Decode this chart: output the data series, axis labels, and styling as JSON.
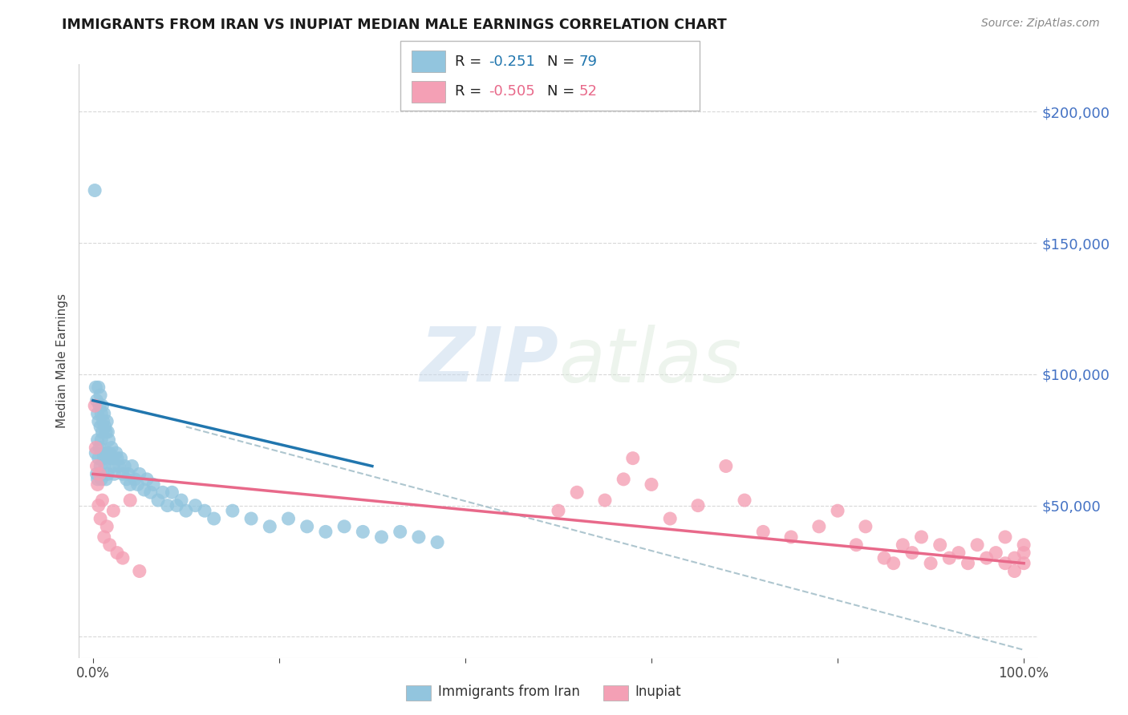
{
  "title": "IMMIGRANTS FROM IRAN VS INUPIAT MEDIAN MALE EARNINGS CORRELATION CHART",
  "source": "Source: ZipAtlas.com",
  "ylabel": "Median Male Earnings",
  "ylim": [
    -8000,
    218000
  ],
  "xlim": [
    -0.015,
    1.015
  ],
  "color_blue": "#92c5de",
  "color_pink": "#f4a0b5",
  "color_blue_line": "#2176ae",
  "color_pink_line": "#e8698a",
  "color_dashed": "#aec6cf",
  "background_color": "#ffffff",
  "grid_color": "#d8d8d8",
  "blue_x": [
    0.002,
    0.003,
    0.003,
    0.004,
    0.004,
    0.005,
    0.005,
    0.005,
    0.006,
    0.006,
    0.006,
    0.007,
    0.007,
    0.008,
    0.008,
    0.008,
    0.009,
    0.009,
    0.009,
    0.01,
    0.01,
    0.011,
    0.011,
    0.012,
    0.012,
    0.013,
    0.013,
    0.014,
    0.014,
    0.015,
    0.015,
    0.016,
    0.016,
    0.017,
    0.018,
    0.019,
    0.02,
    0.021,
    0.022,
    0.023,
    0.025,
    0.026,
    0.028,
    0.03,
    0.032,
    0.034,
    0.036,
    0.038,
    0.04,
    0.042,
    0.045,
    0.048,
    0.05,
    0.055,
    0.058,
    0.062,
    0.065,
    0.07,
    0.075,
    0.08,
    0.085,
    0.09,
    0.095,
    0.1,
    0.11,
    0.12,
    0.13,
    0.15,
    0.17,
    0.19,
    0.21,
    0.23,
    0.25,
    0.27,
    0.29,
    0.31,
    0.33,
    0.35,
    0.37
  ],
  "blue_y": [
    170000,
    95000,
    70000,
    90000,
    62000,
    85000,
    75000,
    60000,
    95000,
    82000,
    68000,
    88000,
    72000,
    92000,
    80000,
    65000,
    85000,
    75000,
    60000,
    88000,
    78000,
    82000,
    70000,
    85000,
    68000,
    80000,
    65000,
    78000,
    60000,
    82000,
    70000,
    78000,
    62000,
    75000,
    70000,
    68000,
    72000,
    68000,
    65000,
    62000,
    70000,
    68000,
    65000,
    68000,
    62000,
    65000,
    60000,
    62000,
    58000,
    65000,
    60000,
    58000,
    62000,
    56000,
    60000,
    55000,
    58000,
    52000,
    55000,
    50000,
    55000,
    50000,
    52000,
    48000,
    50000,
    48000,
    45000,
    48000,
    45000,
    42000,
    45000,
    42000,
    40000,
    42000,
    40000,
    38000,
    40000,
    38000,
    36000
  ],
  "pink_x": [
    0.002,
    0.003,
    0.004,
    0.005,
    0.006,
    0.007,
    0.008,
    0.01,
    0.012,
    0.015,
    0.018,
    0.022,
    0.026,
    0.032,
    0.04,
    0.05,
    0.5,
    0.52,
    0.55,
    0.57,
    0.58,
    0.6,
    0.62,
    0.65,
    0.68,
    0.7,
    0.72,
    0.75,
    0.78,
    0.8,
    0.82,
    0.83,
    0.85,
    0.86,
    0.87,
    0.88,
    0.89,
    0.9,
    0.91,
    0.92,
    0.93,
    0.94,
    0.95,
    0.96,
    0.97,
    0.98,
    0.98,
    0.99,
    0.99,
    1.0,
    1.0,
    1.0
  ],
  "pink_y": [
    88000,
    72000,
    65000,
    58000,
    50000,
    62000,
    45000,
    52000,
    38000,
    42000,
    35000,
    48000,
    32000,
    30000,
    52000,
    25000,
    48000,
    55000,
    52000,
    60000,
    68000,
    58000,
    45000,
    50000,
    65000,
    52000,
    40000,
    38000,
    42000,
    48000,
    35000,
    42000,
    30000,
    28000,
    35000,
    32000,
    38000,
    28000,
    35000,
    30000,
    32000,
    28000,
    35000,
    30000,
    32000,
    28000,
    38000,
    30000,
    25000,
    35000,
    28000,
    32000
  ],
  "blue_line_x0": 0.0,
  "blue_line_x1": 0.3,
  "blue_line_y0": 90000,
  "blue_line_y1": 65000,
  "pink_line_x0": 0.0,
  "pink_line_x1": 1.0,
  "pink_line_y0": 62000,
  "pink_line_y1": 28000,
  "dash_line_x0": 0.1,
  "dash_line_x1": 1.0,
  "dash_line_y0": 80000,
  "dash_line_y1": -5000,
  "ytick_vals": [
    0,
    50000,
    100000,
    150000,
    200000
  ],
  "ytick_labels_right": [
    "",
    "$50,000",
    "$100,000",
    "$150,000",
    "$200,000"
  ],
  "xtick_positions": [
    0.0,
    1.0
  ],
  "xtick_labels": [
    "0.0%",
    "100.0%"
  ],
  "legend_label1": "Immigrants from Iran",
  "legend_label2": "Inupiat"
}
